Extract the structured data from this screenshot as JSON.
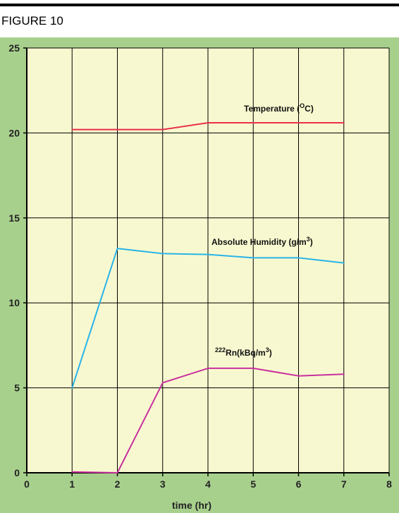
{
  "figure_label": "FIGURE 10",
  "chart_data": {
    "type": "line",
    "xlabel": "time (hr)",
    "xlim": [
      0,
      8
    ],
    "ylim": [
      0,
      25
    ],
    "xticks": [
      0,
      1,
      2,
      3,
      4,
      5,
      6,
      7,
      8
    ],
    "yticks": [
      0,
      5,
      10,
      15,
      20,
      25
    ],
    "grid": true,
    "x": [
      1,
      2,
      3,
      4,
      5,
      6,
      7
    ],
    "series": [
      {
        "name": "Temperature (°C)",
        "color": "#e8304a",
        "values": [
          20.2,
          20.2,
          20.2,
          20.6,
          20.6,
          20.6,
          20.6
        ]
      },
      {
        "name": "Absolute Humidity (g/m³)",
        "color": "#29b4e8",
        "values": [
          5.0,
          13.2,
          12.9,
          12.85,
          12.65,
          12.65,
          12.35
        ]
      },
      {
        "name": "²²²Rn(kBq/m³)",
        "color": "#c8309e",
        "values": [
          0.05,
          0.0,
          5.3,
          6.15,
          6.15,
          5.7,
          5.8
        ]
      }
    ],
    "colors": {
      "outer_background": "#a8d08d",
      "plot_background": "#f8f8d0",
      "grid": "#000000"
    }
  }
}
